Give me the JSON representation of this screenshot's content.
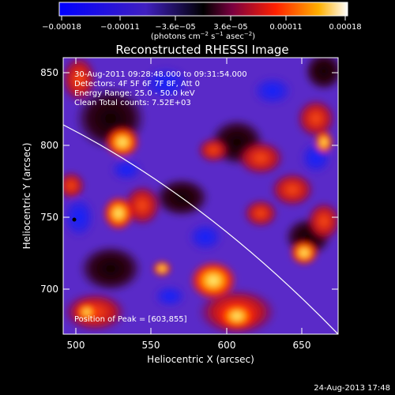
{
  "colorbar": {
    "ticks": [
      "−0.00018",
      "−0.00011",
      "−3.6e−05",
      "3.6e−05",
      "0.00011",
      "0.00018"
    ],
    "unit_main": "(photons cm",
    "unit_sup1": "−2",
    "unit_mid": " s",
    "unit_sup2": "−1",
    "unit_end": " asec",
    "unit_sup3": "−2",
    "unit_close": ")"
  },
  "title": "Reconstructed RHESSI Image",
  "info": {
    "time_range": "30-Aug-2011 09:28:48.000 to 09:31:54.000",
    "detectors": "Detectors: 4F 5F 6F 7F 8F, Att 0",
    "energy_range": "Energy Range: 25.0 - 50.0 keV",
    "clean": "Clean     Total counts: 7.52E+03"
  },
  "peak": "Position of Peak = [603,855]",
  "axes": {
    "xlabel": "Heliocentric X (arcsec)",
    "ylabel": "Heliocentric Y (arcsec)",
    "xticks": [
      "500",
      "550",
      "600",
      "650"
    ],
    "yticks": [
      "850",
      "800",
      "750",
      "700"
    ]
  },
  "footer_date": "24-Aug-2013 17:48",
  "colors": {
    "background": "#000000",
    "low": "#1010ff",
    "mid": "#6a2ad0",
    "high": "#ff3a0a",
    "peak": "#ffff80"
  }
}
